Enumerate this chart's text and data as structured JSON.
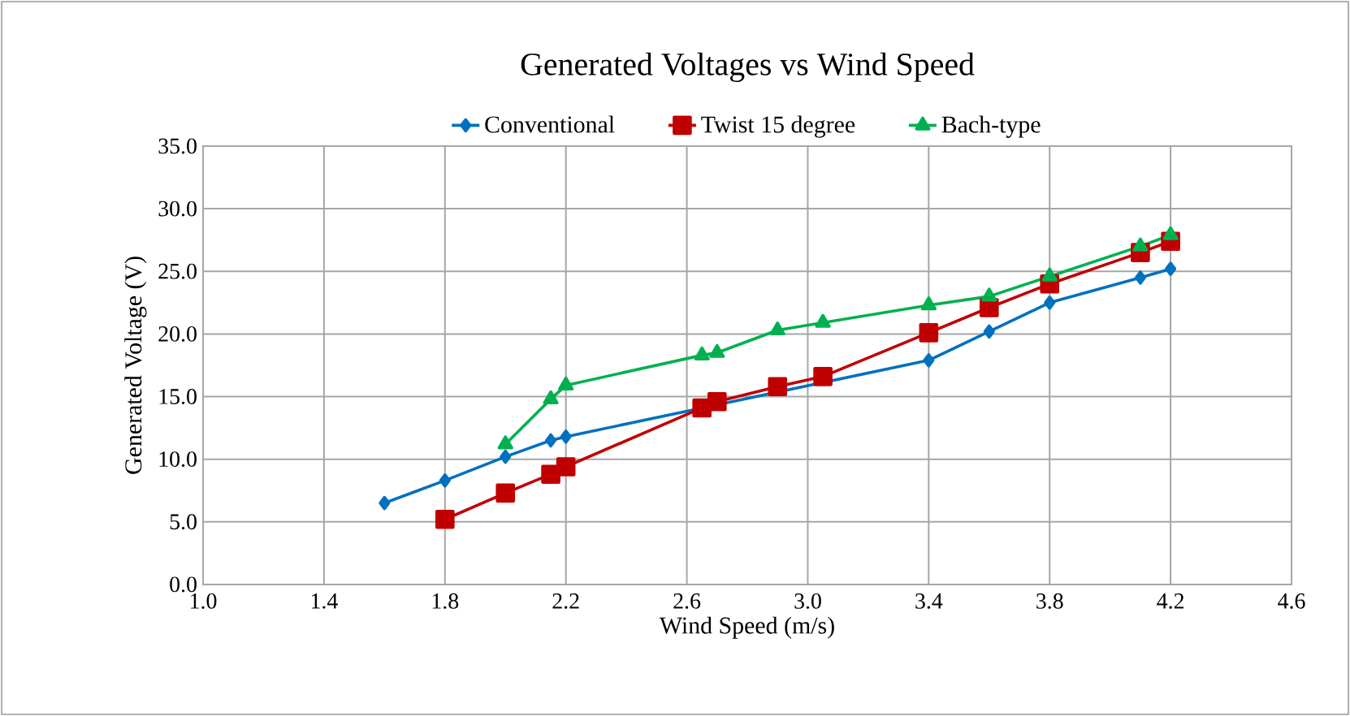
{
  "chart_data": {
    "type": "line",
    "title": "Generated Voltages vs Wind Speed",
    "xlabel": "Wind Speed (m/s)",
    "ylabel": "Generated Voltage (V)",
    "xlim": [
      1.0,
      4.6
    ],
    "xticks": [
      {
        "value": 1.0,
        "label": "1.0"
      },
      {
        "value": 1.4,
        "label": "1.4"
      },
      {
        "value": 1.8,
        "label": "1.8"
      },
      {
        "value": 2.2,
        "label": "2.2"
      },
      {
        "value": 2.6,
        "label": "2.6"
      },
      {
        "value": 3.0,
        "label": "3.0"
      },
      {
        "value": 3.4,
        "label": "3.4"
      },
      {
        "value": 3.8,
        "label": "3.8"
      },
      {
        "value": 4.2,
        "label": "4.2"
      },
      {
        "value": 4.6,
        "label": "4.6"
      }
    ],
    "ylim": [
      0,
      35
    ],
    "yticks": [
      {
        "value": 0,
        "label": "0.0"
      },
      {
        "value": 5,
        "label": "5.0"
      },
      {
        "value": 10,
        "label": "10.0"
      },
      {
        "value": 15,
        "label": "15.0"
      },
      {
        "value": 20,
        "label": "20.0"
      },
      {
        "value": 25,
        "label": "25.0"
      },
      {
        "value": 30,
        "label": "30.0"
      },
      {
        "value": 35,
        "label": "35.0"
      }
    ],
    "grid": true,
    "legend": "top",
    "line_style": "solid",
    "series": [
      {
        "name": "Conventional",
        "color": "#0070c0",
        "marker": "diamond",
        "x": [
          1.6,
          1.8,
          2.0,
          2.15,
          2.2,
          2.65,
          3.05,
          3.4,
          3.6,
          3.8,
          4.1,
          4.2
        ],
        "values": [
          6.5,
          8.3,
          10.2,
          11.5,
          11.8,
          null,
          null,
          17.9,
          20.2,
          22.5,
          24.5,
          25.2
        ]
      },
      {
        "name": "Twist 15 degree",
        "color": "#c00000",
        "marker": "square",
        "x": [
          1.8,
          2.0,
          2.15,
          2.2,
          2.65,
          2.7,
          2.9,
          3.05,
          3.4,
          3.6,
          3.8,
          4.1,
          4.2
        ],
        "values": [
          5.2,
          7.3,
          8.8,
          9.4,
          14.1,
          14.6,
          15.8,
          16.6,
          20.1,
          22.1,
          24.0,
          26.5,
          27.4
        ]
      },
      {
        "name": "Bach-type",
        "color": "#00b050",
        "marker": "triangle",
        "x": [
          2.0,
          2.15,
          2.2,
          2.65,
          2.7,
          2.9,
          3.05,
          3.4,
          3.6,
          3.8,
          4.1,
          4.2
        ],
        "values": [
          11.2,
          14.8,
          15.9,
          18.3,
          18.5,
          20.3,
          20.9,
          22.3,
          23.0,
          24.6,
          27.0,
          27.9
        ]
      }
    ]
  }
}
